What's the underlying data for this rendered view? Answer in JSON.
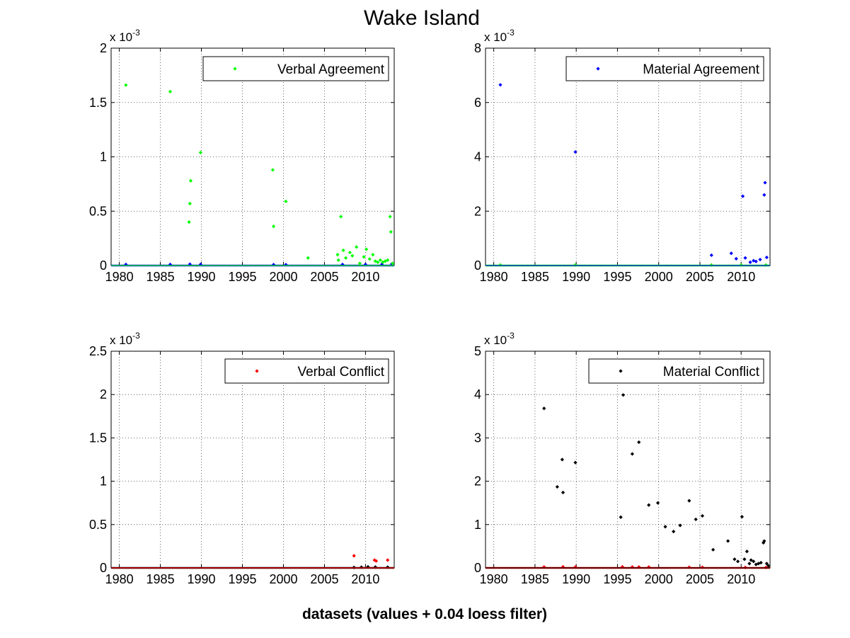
{
  "figure": {
    "title": "Wake Island",
    "xlabel": "datasets (values + 0.04 loess filter)"
  },
  "chart_data": [
    {
      "type": "scatter",
      "name": "verbal-agreement",
      "exponent_label": "x 10",
      "exponent_power": "-3",
      "ylim": [
        0,
        2
      ],
      "yticks": [
        "0",
        "0.5",
        "1",
        "1.5",
        "2"
      ],
      "ytick_values": [
        0,
        0.5,
        1,
        1.5,
        2
      ],
      "xlim": [
        1979,
        2013.5
      ],
      "xticks": [
        "1980",
        "1985",
        "1990",
        "1995",
        "2000",
        "2005",
        "2010"
      ],
      "xtick_values": [
        1980,
        1985,
        1990,
        1995,
        2000,
        2005,
        2010
      ],
      "grid": true,
      "legend_position": "top-right",
      "legend": "Verbal Agreement",
      "series": [
        {
          "name": "Verbal Agreement",
          "color": "#00ff00",
          "x": [
            1980.8,
            1986.2,
            1988.5,
            1988.6,
            1988.7,
            1989.9,
            1998.7,
            1998.8,
            2000.3,
            2003.0,
            2006.6,
            2006.7,
            2007.0,
            2007.3,
            2007.6,
            2008.1,
            2008.4,
            2008.9,
            2009.3,
            2009.8,
            2010.1,
            2010.5,
            2010.9,
            2011.2,
            2011.5,
            2011.8,
            2012.1,
            2012.4,
            2012.7,
            2013.0,
            2013.1,
            2013.3
          ],
          "y": [
            1.66,
            1.6,
            0.4,
            0.57,
            0.78,
            1.04,
            0.88,
            0.36,
            0.59,
            0.07,
            0.1,
            0.05,
            0.45,
            0.14,
            0.07,
            0.12,
            0.09,
            0.17,
            0.02,
            0.08,
            0.15,
            0.06,
            0.1,
            0.04,
            0.03,
            0.05,
            0.03,
            0.04,
            0.05,
            0.45,
            0.31,
            0.02
          ]
        },
        {
          "name": "loess",
          "color": "#0000ff",
          "x": [
            1980.8,
            1986.2,
            1988.6,
            1989.9,
            1998.8,
            2000.3,
            2007.2,
            2010.0,
            2012.0,
            2013.2
          ],
          "y": [
            0.01,
            0.01,
            0.012,
            0.01,
            0.008,
            0.008,
            0.01,
            0.01,
            0.012,
            0.015
          ]
        }
      ]
    },
    {
      "type": "scatter",
      "name": "material-agreement",
      "exponent_label": "x 10",
      "exponent_power": "-3",
      "ylim": [
        0,
        8
      ],
      "yticks": [
        "0",
        "2",
        "4",
        "6",
        "8"
      ],
      "ytick_values": [
        0,
        2,
        4,
        6,
        8
      ],
      "xlim": [
        1979,
        2013.5
      ],
      "xticks": [
        "1980",
        "1985",
        "1990",
        "1995",
        "2000",
        "2005",
        "2010"
      ],
      "xtick_values": [
        1980,
        1985,
        1990,
        1995,
        2000,
        2005,
        2010
      ],
      "grid": true,
      "legend_position": "top-right",
      "legend": "Material Agreement",
      "series": [
        {
          "name": "Material Agreement",
          "color": "#0000ff",
          "x": [
            1980.8,
            1989.9,
            2006.4,
            2008.8,
            2009.4,
            2010.2,
            2010.5,
            2011.1,
            2011.5,
            2011.8,
            2012.3,
            2012.8,
            2012.9,
            2013.1
          ],
          "y": [
            6.65,
            4.18,
            0.38,
            0.45,
            0.25,
            2.55,
            0.28,
            0.12,
            0.18,
            0.15,
            0.22,
            2.6,
            3.05,
            0.3
          ]
        },
        {
          "name": "loess",
          "color": "#00ff00",
          "x": [
            1980.8,
            1989.9,
            2006.4,
            2010.0,
            2013.0
          ],
          "y": [
            0.02,
            0.02,
            0.02,
            0.02,
            0.02
          ]
        }
      ]
    },
    {
      "type": "scatter",
      "name": "verbal-conflict",
      "exponent_label": "x 10",
      "exponent_power": "-3",
      "ylim": [
        0,
        2.5
      ],
      "yticks": [
        "0",
        "0.5",
        "1",
        "1.5",
        "2",
        "2.5"
      ],
      "ytick_values": [
        0,
        0.5,
        1,
        1.5,
        2,
        2.5
      ],
      "xlim": [
        1979,
        2013.5
      ],
      "xticks": [
        "1980",
        "1985",
        "1990",
        "1995",
        "2000",
        "2005",
        "2010"
      ],
      "xtick_values": [
        1980,
        1985,
        1990,
        1995,
        2000,
        2005,
        2010
      ],
      "grid": true,
      "legend_position": "top-right",
      "legend": "Verbal Conflict",
      "series": [
        {
          "name": "Verbal Conflict",
          "color": "#ff0000",
          "x": [
            2008.6,
            2011.1,
            2011.3,
            2012.7
          ],
          "y": [
            0.14,
            0.09,
            0.08,
            0.09
          ]
        },
        {
          "name": "loess",
          "color": "#000000",
          "x": [
            2008.6,
            2009.5,
            2010.3,
            2011.2,
            2012.7
          ],
          "y": [
            0.005,
            0.008,
            0.012,
            0.01,
            0.008
          ]
        }
      ]
    },
    {
      "type": "scatter",
      "name": "material-conflict",
      "exponent_label": "x 10",
      "exponent_power": "-3",
      "ylim": [
        0,
        5
      ],
      "yticks": [
        "0",
        "1",
        "2",
        "3",
        "4",
        "5"
      ],
      "ytick_values": [
        0,
        1,
        2,
        3,
        4,
        5
      ],
      "xlim": [
        1979,
        2013.5
      ],
      "xticks": [
        "1980",
        "1985",
        "1990",
        "1995",
        "2000",
        "2005",
        "2010"
      ],
      "xtick_values": [
        1980,
        1985,
        1990,
        1995,
        2000,
        2005,
        2010
      ],
      "grid": true,
      "legend_position": "top-right",
      "legend": "Material Conflict",
      "series": [
        {
          "name": "Material Conflict",
          "color": "#000000",
          "x": [
            1986.1,
            1987.7,
            1988.3,
            1988.4,
            1989.9,
            1995.4,
            1995.7,
            1996.8,
            1997.6,
            1998.8,
            1999.9,
            2000.8,
            2001.8,
            2002.6,
            2003.7,
            2004.5,
            2005.3,
            2006.6,
            2008.4,
            2009.2,
            2009.6,
            2010.1,
            2010.4,
            2010.7,
            2011.0,
            2011.2,
            2011.5,
            2011.8,
            2012.1,
            2012.4,
            2012.7,
            2012.8,
            2013.1,
            2013.3
          ],
          "y": [
            3.68,
            1.87,
            2.5,
            1.74,
            2.43,
            1.17,
            3.99,
            2.63,
            2.9,
            1.45,
            1.5,
            0.95,
            0.84,
            0.98,
            1.55,
            1.12,
            1.2,
            0.42,
            0.62,
            0.2,
            0.15,
            1.18,
            0.2,
            0.38,
            0.1,
            0.18,
            0.15,
            0.08,
            0.1,
            0.12,
            0.58,
            0.62,
            0.1,
            0.05
          ]
        },
        {
          "name": "loess",
          "color": "#ff0000",
          "x": [
            1986.1,
            1988.4,
            1989.9,
            1995.6,
            1996.8,
            1997.6,
            1998.8,
            2003.7,
            2005.3,
            2010.5,
            2013.0
          ],
          "y": [
            0.02,
            0.025,
            0.02,
            0.025,
            0.02,
            0.02,
            0.02,
            0.015,
            0.015,
            0.01,
            0.01
          ]
        }
      ]
    }
  ]
}
